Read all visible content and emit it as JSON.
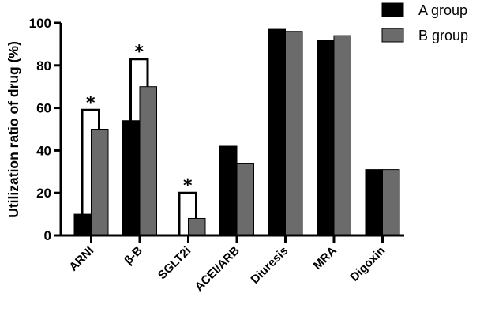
{
  "chart_data": {
    "type": "bar",
    "title": "",
    "xlabel": "",
    "ylabel": "Utilization ratio of drug (%)",
    "ylim": [
      0,
      100
    ],
    "yticks": [
      "0",
      "20",
      "40",
      "60",
      "80",
      "100"
    ],
    "categories": [
      "ARNI",
      "β-B",
      "SGLT2i",
      "ACEI/ARB",
      "Diuresis",
      "MRA",
      "Digoxin"
    ],
    "series": [
      {
        "name": "A group",
        "color": "#000000",
        "values": [
          10,
          54,
          0,
          42,
          97,
          92,
          31
        ]
      },
      {
        "name": "B group",
        "color": "#6b6b6b",
        "values": [
          50,
          70,
          8,
          34,
          96,
          94,
          31
        ]
      }
    ],
    "significance": [
      {
        "category": "ARNI",
        "label": "*",
        "bracket_top": 59
      },
      {
        "category": "β-B",
        "label": "*",
        "bracket_top": 83
      },
      {
        "category": "SGLT2i",
        "label": "*",
        "bracket_top": 20
      }
    ],
    "legend_position": "top-right",
    "grid": false
  }
}
